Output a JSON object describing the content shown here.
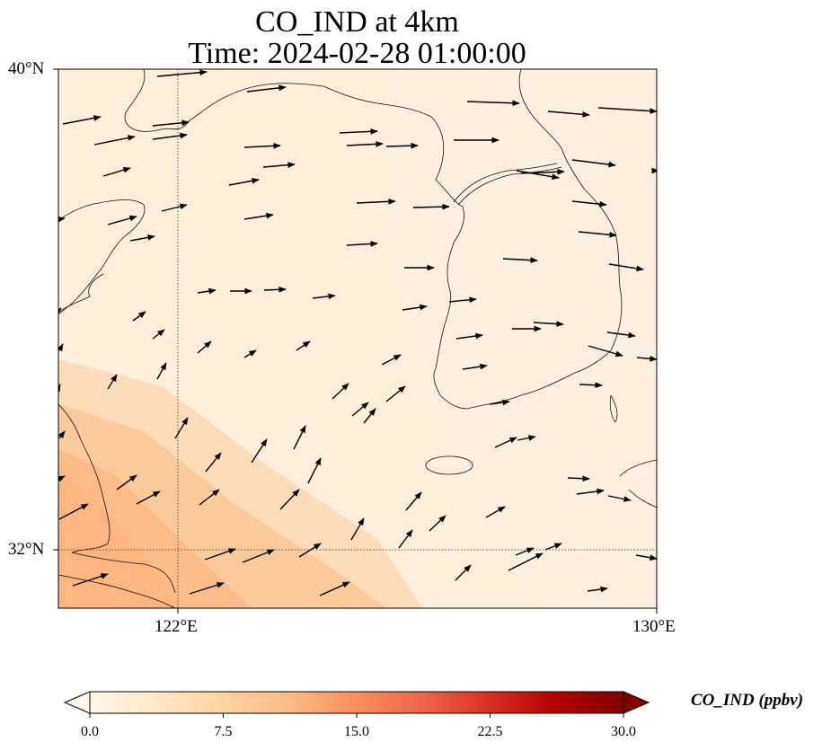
{
  "title": {
    "line1": "CO_IND at 4km",
    "line2": "Time: 2024-02-28 01:00:00"
  },
  "map": {
    "lat_labels": [
      "40°N",
      "32°N"
    ],
    "lon_labels": [
      "122°E",
      "130°E"
    ],
    "field_colors": {
      "background": "#fdefdc",
      "plume_light": "#fddcb4",
      "plume_mid": "#fdc797",
      "plume_dark": "#fcb47e"
    }
  },
  "colorbar": {
    "label": "CO_IND (ppbv)",
    "ticks": [
      "0.0",
      "7.5",
      "15.0",
      "22.5",
      "30.0"
    ],
    "colormap": "OrRd",
    "colors": [
      "#fff7ec",
      "#fee8c8",
      "#fdd49e",
      "#fdbb84",
      "#fc8d59",
      "#ef6548",
      "#d7301f",
      "#b30000",
      "#7f0000"
    ]
  }
}
